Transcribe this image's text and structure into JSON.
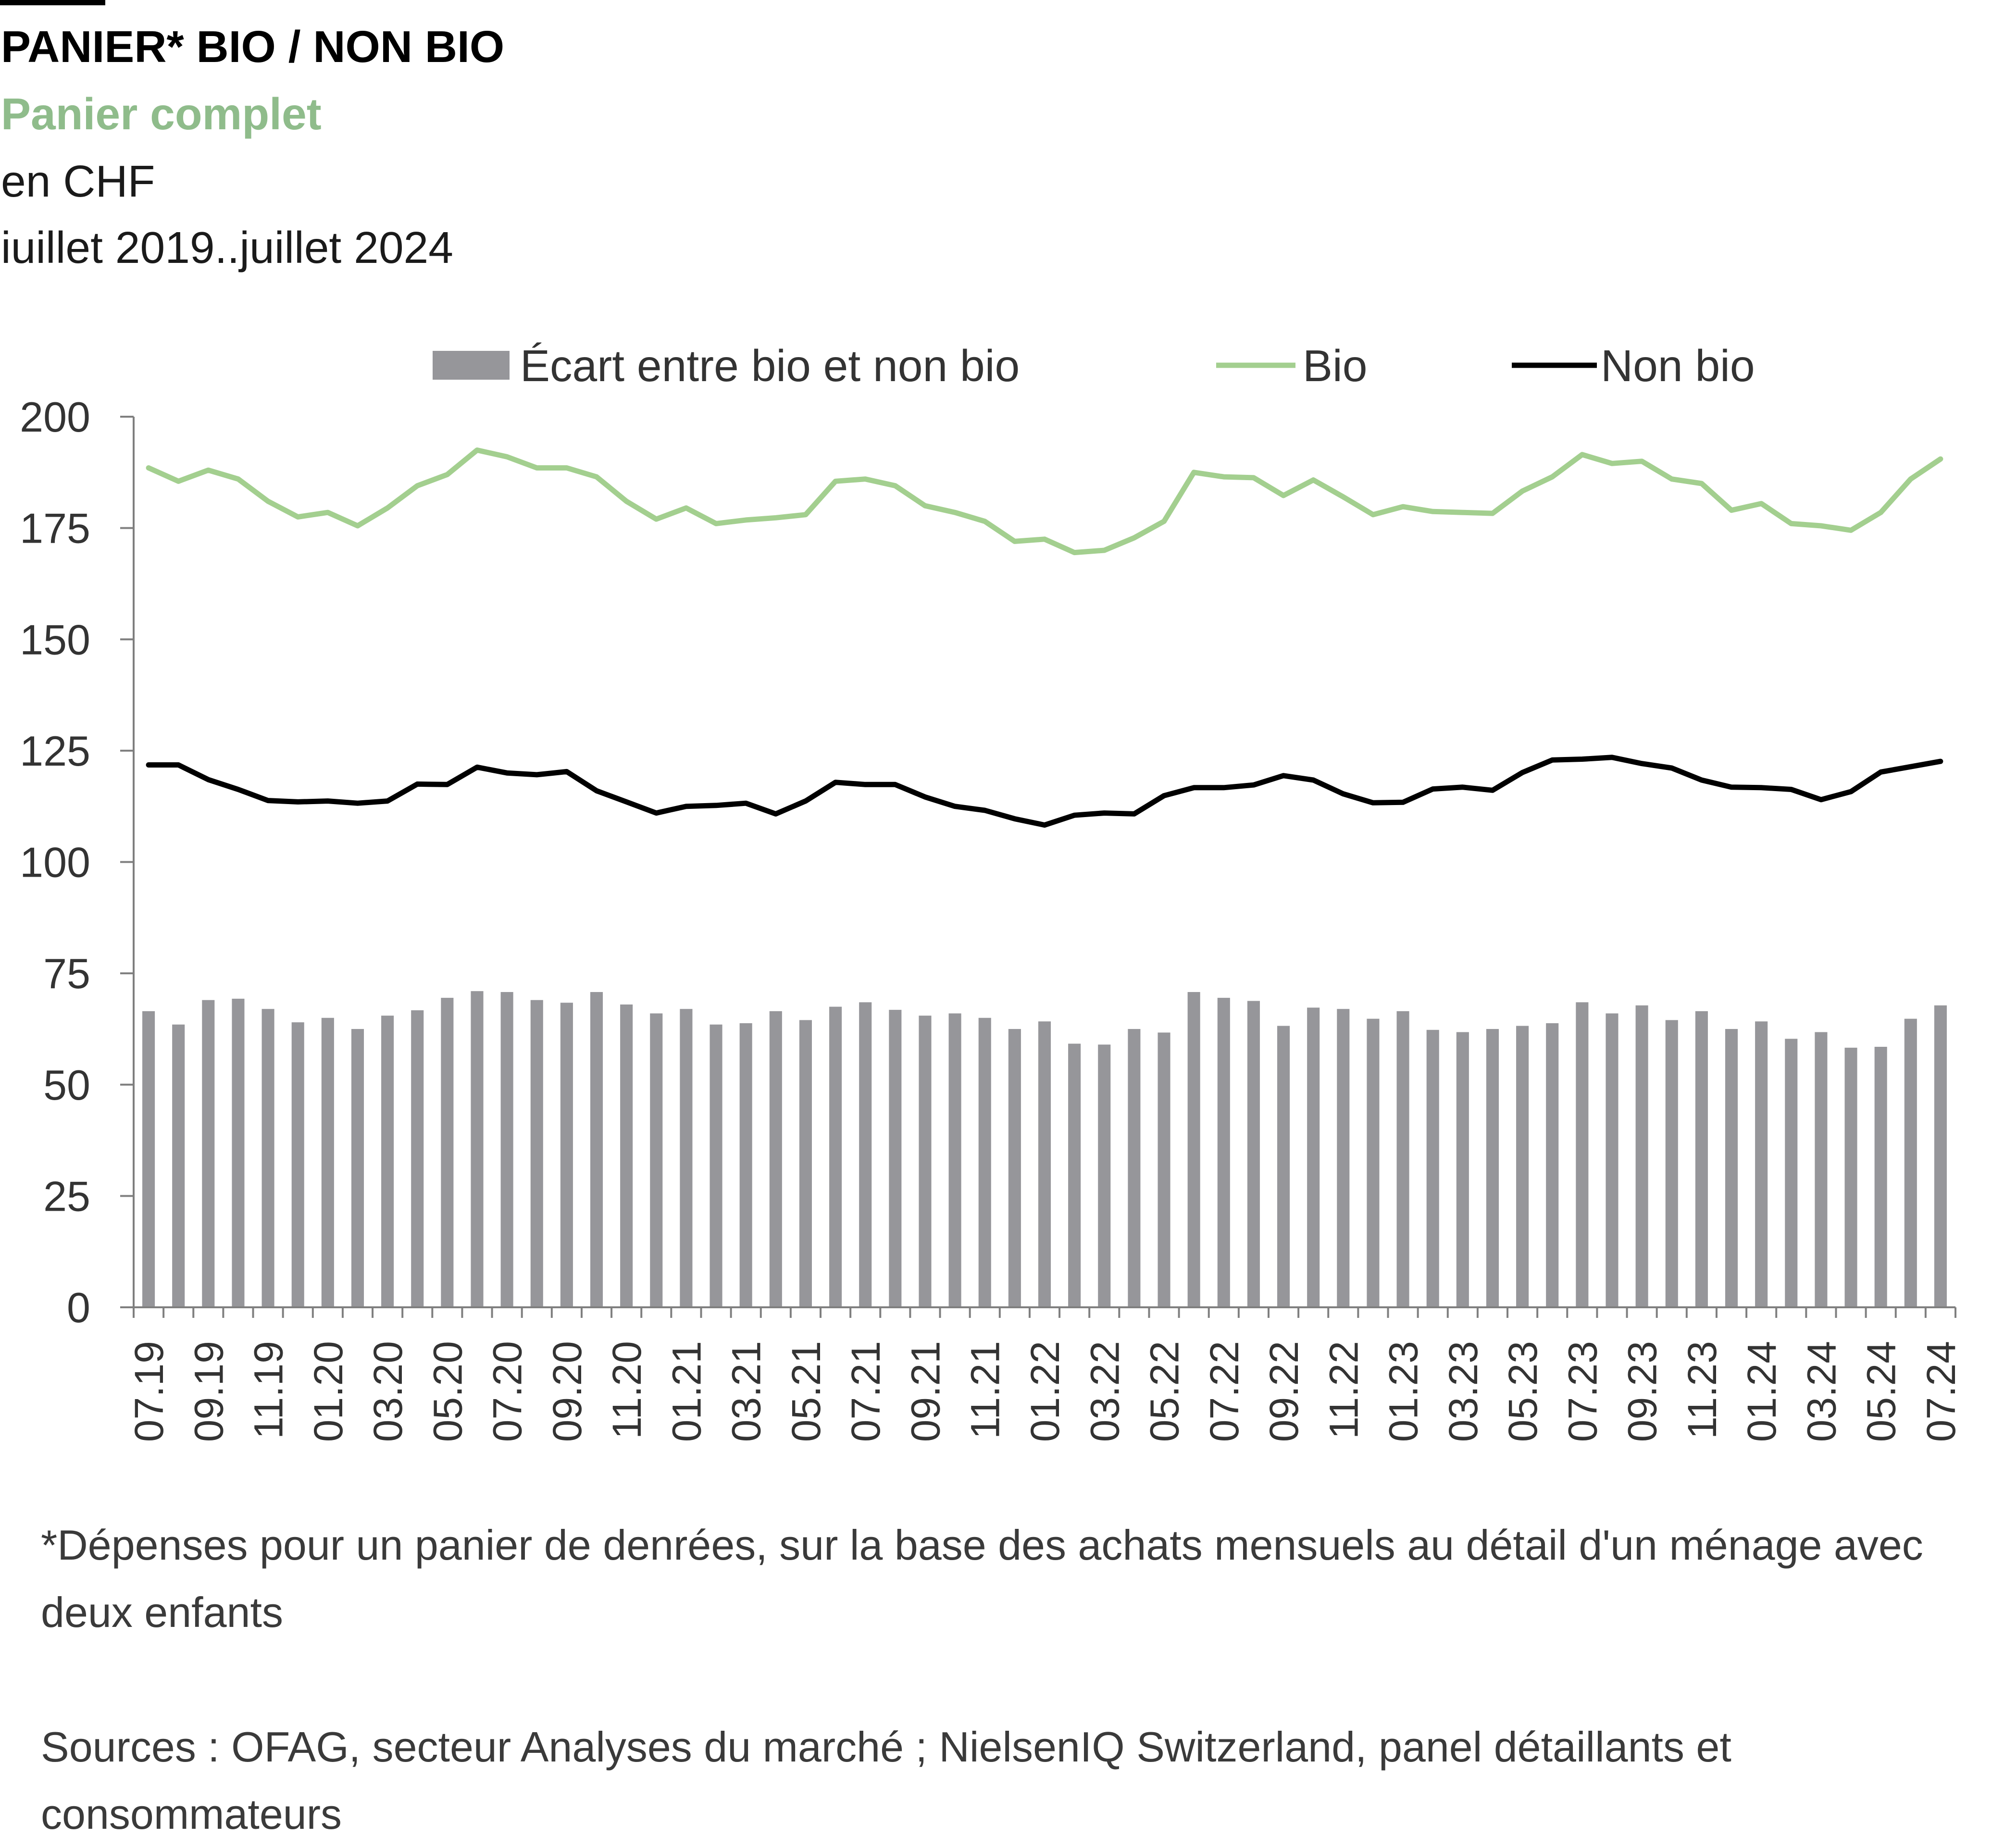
{
  "header": {
    "title": "PANIER* BIO / NON BIO",
    "subtitle": "Panier complet",
    "unit": "en CHF",
    "period": "iuillet 2019..juillet 2024"
  },
  "footer": {
    "footnote": "*Dépenses pour un panier de denrées, sur la base des achats mensuels au détail d'un ménage avec deux enfants",
    "sources": "Sources : OFAG, secteur Analyses du marché ; NielsenIQ Switzerland, panel détaillants et consommateurs"
  },
  "colors": {
    "bio": "#a3cf8f",
    "non_bio": "#000000",
    "ecart": "#96969a",
    "axis": "#7f7f7f",
    "subtitle": "#8fbc8b"
  },
  "chart_data": {
    "type": "bar",
    "legend_position": "top",
    "grid": false,
    "ylim": [
      0,
      200
    ],
    "yticks": [
      0,
      25,
      50,
      75,
      100,
      125,
      150,
      175,
      200
    ],
    "categories": [
      "07.19",
      "08.19",
      "09.19",
      "10.19",
      "11.19",
      "12.19",
      "01.20",
      "02.20",
      "03.20",
      "04.20",
      "05.20",
      "06.20",
      "07.20",
      "08.20",
      "09.20",
      "10.20",
      "11.20",
      "12.20",
      "01.21",
      "02.21",
      "03.21",
      "04.21",
      "05.21",
      "06.21",
      "07.21",
      "08.21",
      "09.21",
      "10.21",
      "11.21",
      "12.21",
      "01.22",
      "02.22",
      "03.22",
      "04.22",
      "05.22",
      "06.22",
      "07.22",
      "08.22",
      "09.22",
      "10.22",
      "11.22",
      "12.22",
      "01.23",
      "02.23",
      "03.23",
      "04.23",
      "05.23",
      "06.23",
      "07.23",
      "08.23",
      "09.23",
      "10.23",
      "11.23",
      "12.23",
      "01.24",
      "02.24",
      "03.24",
      "04.24",
      "05.24",
      "06.24",
      "07.24"
    ],
    "shown_ticks": [
      "07.19",
      "09.19",
      "11.19",
      "01.20",
      "03.20",
      "05.20",
      "07.20",
      "09.20",
      "11.20",
      "01.21",
      "03.21",
      "05.21",
      "07.21",
      "09.21",
      "11.21",
      "01.22",
      "03.22",
      "05.22",
      "07.22",
      "09.22",
      "11.22",
      "01.23",
      "03.23",
      "05.23",
      "07.23",
      "09.23",
      "11.23",
      "01.24",
      "03.24",
      "05.24",
      "07.24"
    ],
    "series": [
      {
        "name": "Écart entre bio et non bio",
        "type": "bar",
        "values": [
          66.5,
          63.5,
          69,
          69.3,
          67,
          64,
          65,
          62.5,
          65.5,
          66.7,
          69.5,
          71,
          70.8,
          69,
          68.4,
          70.8,
          68,
          66,
          67,
          63.5,
          63.8,
          66.5,
          64.5,
          67.5,
          68.5,
          66.8,
          65.5,
          66,
          65,
          62.5,
          64.2,
          59.2,
          59,
          62.5,
          61.7,
          70.8,
          69.5,
          68.8,
          63.2,
          67.3,
          67,
          64.8,
          66.5,
          62.3,
          61.8,
          62.5,
          63.2,
          63.8,
          68.5,
          66,
          67.8,
          64.5,
          66.5,
          62.5,
          64.2,
          60.3,
          61.8,
          58.3,
          58.5,
          64.8,
          67.8
        ]
      },
      {
        "name": "Bio",
        "type": "line",
        "values": [
          188.5,
          185.5,
          188,
          186,
          181,
          177.5,
          178.5,
          175.5,
          179.5,
          184.5,
          187,
          192.5,
          191,
          188.5,
          188.5,
          186.5,
          181,
          177,
          179.5,
          176,
          176.8,
          177.3,
          178,
          185.5,
          186,
          184.5,
          180,
          178.5,
          176.5,
          172,
          172.5,
          169.5,
          170,
          172.8,
          176.5,
          187.5,
          186.5,
          186.3,
          182.3,
          185.8,
          182,
          178,
          179.8,
          178.7,
          178.5,
          178.3,
          183.3,
          186.5,
          191.5,
          189.5,
          190,
          186,
          185,
          179,
          180.5,
          176,
          175.5,
          174.5,
          178.5,
          186,
          190.5
        ]
      },
      {
        "name": "Non bio",
        "type": "line",
        "values": [
          121.8,
          121.8,
          118.5,
          116.3,
          113.8,
          113.5,
          113.7,
          113.2,
          113.7,
          117.5,
          117.4,
          121.3,
          120,
          119.6,
          120.3,
          116,
          113.5,
          111,
          112.5,
          112.7,
          113.2,
          110.8,
          113.7,
          117.9,
          117.4,
          117.4,
          114.6,
          112.5,
          111.6,
          109.7,
          108.3,
          110.5,
          111,
          110.8,
          114.9,
          116.7,
          116.7,
          117.3,
          119.4,
          118.4,
          115.3,
          113.3,
          113.4,
          116.4,
          116.8,
          116.1,
          120.1,
          122.9,
          123.1,
          123.5,
          122.1,
          121.1,
          118.4,
          116.8,
          116.7,
          116.3,
          114,
          115.8,
          120.2,
          121.4,
          122.6
        ]
      }
    ]
  }
}
